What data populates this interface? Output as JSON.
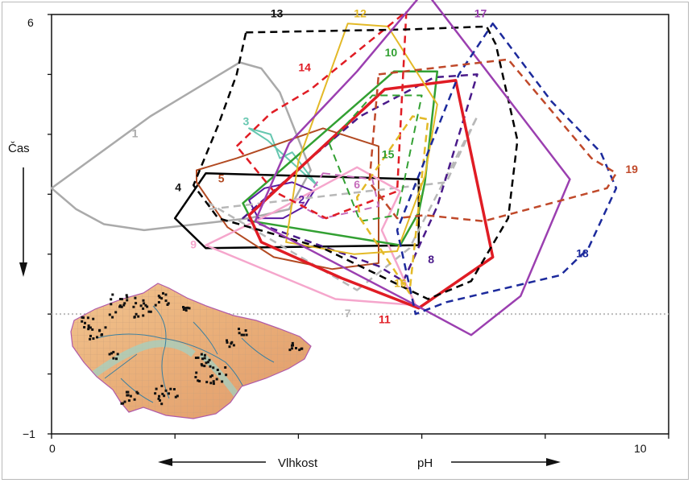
{
  "chart_data": {
    "type": "area",
    "title": "",
    "xlabel_left": "Vlhkost",
    "xlabel_right": "pH",
    "ylabel": "Čas",
    "xlim": [
      0,
      10
    ],
    "ylim": [
      -1,
      6
    ],
    "x_ticks": [
      0,
      2,
      4,
      6,
      8,
      10
    ],
    "x_tick_labels": [
      "0",
      "",
      "",
      "",
      "",
      "10"
    ],
    "y_ticks": [
      -1,
      0,
      1,
      2,
      3,
      4,
      5,
      6
    ],
    "y_tick_labels": [
      "−1",
      "",
      "",
      "",
      "",
      "",
      "",
      "6"
    ],
    "reference_line_y": 1,
    "polygons": [
      {
        "id": "1",
        "color": "#aaaaaa",
        "dash": false,
        "width": 2.5,
        "label_at": [
          1.3,
          3.95
        ],
        "points": [
          [
            0,
            3.1
          ],
          [
            0.4,
            3.4
          ],
          [
            1.6,
            4.3
          ],
          [
            3.05,
            5.2
          ],
          [
            3.4,
            5.1
          ],
          [
            3.7,
            4.7
          ],
          [
            4.2,
            3.4
          ],
          [
            3.85,
            2.75
          ],
          [
            3.2,
            2.6
          ],
          [
            1.5,
            2.4
          ],
          [
            0.85,
            2.5
          ],
          [
            0.4,
            2.75
          ]
        ]
      },
      {
        "id": "2",
        "color": "#5a1aa0",
        "dash": false,
        "width": 2,
        "label_at": [
          4.0,
          2.85
        ],
        "points": [
          [
            3.2,
            2.9
          ],
          [
            3.45,
            3.1
          ],
          [
            3.9,
            3.2
          ],
          [
            4.25,
            3.05
          ],
          [
            4.1,
            2.8
          ],
          [
            3.75,
            2.6
          ],
          [
            3.35,
            2.6
          ]
        ]
      },
      {
        "id": "3",
        "color": "#66c7b0",
        "dash": false,
        "width": 2,
        "label_at": [
          3.1,
          4.15
        ],
        "points": [
          [
            3.2,
            4.1
          ],
          [
            3.5,
            3.9
          ],
          [
            4.3,
            3.15
          ],
          [
            3.9,
            3.7
          ],
          [
            3.7,
            3.6
          ],
          [
            3.55,
            4.0
          ]
        ]
      },
      {
        "id": "4",
        "color": "#000000",
        "dash": false,
        "width": 2.5,
        "label_at": [
          2.0,
          3.05
        ],
        "points": [
          [
            2.5,
            3.35
          ],
          [
            5.95,
            3.25
          ],
          [
            5.95,
            2.15
          ],
          [
            2.5,
            2.1
          ],
          [
            2.0,
            2.6
          ]
        ]
      },
      {
        "id": "5",
        "color": "#b24a22",
        "dash": false,
        "width": 2,
        "label_at": [
          2.7,
          3.2
        ],
        "points": [
          [
            2.35,
            3.4
          ],
          [
            3.0,
            3.6
          ],
          [
            4.4,
            4.1
          ],
          [
            5.3,
            3.8
          ],
          [
            5.3,
            3.0
          ],
          [
            5.3,
            1.85
          ],
          [
            4.55,
            1.75
          ],
          [
            3.6,
            1.95
          ],
          [
            2.85,
            2.45
          ],
          [
            2.35,
            3.2
          ]
        ]
      },
      {
        "id": "6",
        "color": "#c66cbb",
        "dash": true,
        "width": 2,
        "label_at": [
          4.9,
          3.1
        ],
        "points": [
          [
            4.4,
            3.35
          ],
          [
            5.2,
            3.25
          ],
          [
            5.3,
            2.8
          ],
          [
            4.4,
            2.6
          ],
          [
            4.05,
            2.8
          ]
        ]
      },
      {
        "id": "7",
        "color": "#b8b8b8",
        "dash": true,
        "width": 2.5,
        "label_at": [
          4.75,
          0.95
        ],
        "points": [
          [
            4.95,
            1.4
          ],
          [
            5.8,
            2.1
          ],
          [
            6.9,
            4.3
          ],
          [
            6.4,
            3.2
          ],
          [
            2.55,
            2.75
          ],
          [
            2.55,
            2.85
          ]
        ]
      },
      {
        "id": "8",
        "color": "#4a1a8a",
        "dash": true,
        "width": 2.5,
        "label_at": [
          6.1,
          1.85
        ],
        "points": [
          [
            5.7,
            1.55
          ],
          [
            6.25,
            2.8
          ],
          [
            6.9,
            5.0
          ],
          [
            6.2,
            4.95
          ],
          [
            5.0,
            4.3
          ],
          [
            4.2,
            3.6
          ],
          [
            3.1,
            2.6
          ],
          [
            5.3,
            1.8
          ]
        ]
      },
      {
        "id": "9",
        "color": "#f5a6cc",
        "dash": false,
        "width": 2.5,
        "label_at": [
          2.25,
          2.1
        ],
        "points": [
          [
            2.5,
            2.15
          ],
          [
            3.6,
            2.7
          ],
          [
            4.95,
            3.45
          ],
          [
            5.65,
            3.05
          ],
          [
            5.35,
            2.4
          ],
          [
            5.9,
            1.15
          ],
          [
            4.6,
            1.25
          ]
        ]
      },
      {
        "id": "10",
        "color": "#32a032",
        "dash": false,
        "width": 2.5,
        "label_at": [
          5.4,
          5.3
        ],
        "points": [
          [
            3.1,
            2.85
          ],
          [
            5.55,
            5.05
          ],
          [
            6.25,
            5.05
          ],
          [
            6.05,
            3.2
          ],
          [
            5.95,
            2.7
          ],
          [
            5.65,
            2.15
          ],
          [
            3.25,
            2.55
          ]
        ]
      },
      {
        "id": "11",
        "color": "#e01c24",
        "dash": false,
        "width": 3.5,
        "label_at": [
          5.3,
          0.85
        ],
        "points": [
          [
            3.2,
            2.65
          ],
          [
            5.4,
            4.75
          ],
          [
            6.55,
            4.9
          ],
          [
            7.15,
            1.95
          ],
          [
            5.95,
            1.1
          ],
          [
            4.7,
            1.6
          ],
          [
            3.4,
            2.2
          ]
        ]
      },
      {
        "id": "12",
        "color": "#e3b927",
        "dash": false,
        "width": 2,
        "label_at": [
          4.9,
          5.95
        ],
        "points": [
          [
            4.0,
            3.55
          ],
          [
            4.8,
            5.85
          ],
          [
            5.45,
            5.8
          ],
          [
            6.25,
            4.5
          ],
          [
            6.05,
            3.3
          ],
          [
            5.6,
            2.05
          ],
          [
            4.9,
            2.0
          ],
          [
            3.8,
            2.2
          ]
        ]
      },
      {
        "id": "14",
        "color": "#e01c24",
        "dash": true,
        "width": 2.5,
        "label_at": [
          4.0,
          5.05
        ],
        "points": [
          [
            3.0,
            3.8
          ],
          [
            3.55,
            4.35
          ],
          [
            4.2,
            4.75
          ],
          [
            5.75,
            6.05
          ],
          [
            5.6,
            3.05
          ],
          [
            4.45,
            2.6
          ],
          [
            3.6,
            3.05
          ]
        ]
      },
      {
        "id": "13",
        "color": "#000000",
        "dash": true,
        "width": 2.5,
        "label_at": [
          3.55,
          5.95
        ],
        "points": [
          [
            3.15,
            5.7
          ],
          [
            5.75,
            5.75
          ],
          [
            7.05,
            5.8
          ],
          [
            7.2,
            5.5
          ],
          [
            7.55,
            3.9
          ],
          [
            7.4,
            2.6
          ],
          [
            6.8,
            1.55
          ],
          [
            6.1,
            1.25
          ],
          [
            4.4,
            2.1
          ],
          [
            2.7,
            2.6
          ],
          [
            2.3,
            3.15
          ],
          [
            2.7,
            4.15
          ],
          [
            3.0,
            5.0
          ]
        ]
      },
      {
        "id": "15",
        "color": "#32a032",
        "dash": true,
        "width": 2,
        "label_at": [
          5.35,
          3.6
        ],
        "points": [
          [
            4.5,
            3.85
          ],
          [
            5.2,
            4.65
          ],
          [
            6.0,
            4.65
          ],
          [
            5.6,
            2.65
          ],
          [
            5.0,
            2.55
          ]
        ]
      },
      {
        "id": "16",
        "color": "#e3b927",
        "dash": true,
        "width": 2.5,
        "label_at": [
          5.55,
          1.45
        ],
        "points": [
          [
            5.0,
            2.6
          ],
          [
            5.8,
            1.35
          ],
          [
            6.1,
            4.25
          ],
          [
            5.85,
            4.3
          ],
          [
            4.95,
            2.95
          ]
        ]
      },
      {
        "id": "17",
        "color": "#9b3fb0",
        "dash": false,
        "width": 2.5,
        "label_at": [
          6.85,
          5.95
        ],
        "points": [
          [
            6.05,
            6.4
          ],
          [
            8.4,
            3.25
          ],
          [
            7.6,
            1.3
          ],
          [
            6.8,
            0.65
          ],
          [
            5.9,
            1.15
          ],
          [
            3.3,
            2.55
          ],
          [
            3.85,
            3.85
          ],
          [
            4.95,
            5.05
          ]
        ]
      },
      {
        "id": "18",
        "color": "#1c2a9c",
        "dash": true,
        "width": 2.5,
        "label_at": [
          8.5,
          1.95
        ],
        "points": [
          [
            7.15,
            5.85
          ],
          [
            8.1,
            4.55
          ],
          [
            8.9,
            3.7
          ],
          [
            9.15,
            3.1
          ],
          [
            8.7,
            2.1
          ],
          [
            8.25,
            1.65
          ],
          [
            6.4,
            1.2
          ],
          [
            5.9,
            1.0
          ],
          [
            5.6,
            2.4
          ],
          [
            6.6,
            5.0
          ]
        ]
      },
      {
        "id": "19",
        "color": "#c0492a",
        "dash": true,
        "width": 2.5,
        "label_at": [
          9.3,
          3.35
        ],
        "points": [
          [
            5.3,
            5.0
          ],
          [
            7.4,
            5.25
          ],
          [
            8.75,
            3.6
          ],
          [
            9.15,
            3.35
          ],
          [
            9.0,
            3.1
          ],
          [
            7.0,
            2.55
          ],
          [
            6.05,
            2.65
          ],
          [
            5.6,
            2.6
          ],
          [
            5.15,
            3.2
          ]
        ]
      }
    ]
  },
  "inset_map": {
    "name": "czech-republic-map"
  }
}
